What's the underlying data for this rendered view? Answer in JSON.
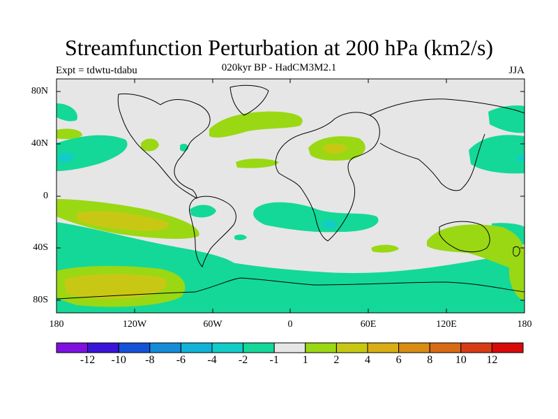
{
  "title": "Streamfunction Perturbation at 200 hPa (km2/s)",
  "subtitle": "020kyr BP - HadCM3M2.1",
  "experiment": "Expt = tdwtu-tdabu",
  "season": "JJA",
  "lat_labels": [
    "80N",
    "40N",
    "0",
    "40S",
    "80S"
  ],
  "lon_labels": [
    "180",
    "120W",
    "60W",
    "0",
    "60E",
    "120E",
    "180"
  ],
  "colorbar": {
    "labels": [
      "-12",
      "-10",
      "-8",
      "-6",
      "-4",
      "-2",
      "-1",
      "1",
      "2",
      "4",
      "6",
      "8",
      "10",
      "12"
    ],
    "colors": [
      "#7e10e0",
      "#3a14d8",
      "#1452d8",
      "#148cd8",
      "#12b2d8",
      "#12ccc8",
      "#14d898",
      "#e6e6e6",
      "#9ad814",
      "#c8c814",
      "#d8ae14",
      "#d88c14",
      "#d86a14",
      "#d83c14",
      "#d80a0a"
    ]
  },
  "colors": {
    "land_gray": "#e6e6e6",
    "neg1": "#14d898",
    "neg2": "#12ccc8",
    "pos1": "#9ad814",
    "pos2": "#c8c814"
  }
}
